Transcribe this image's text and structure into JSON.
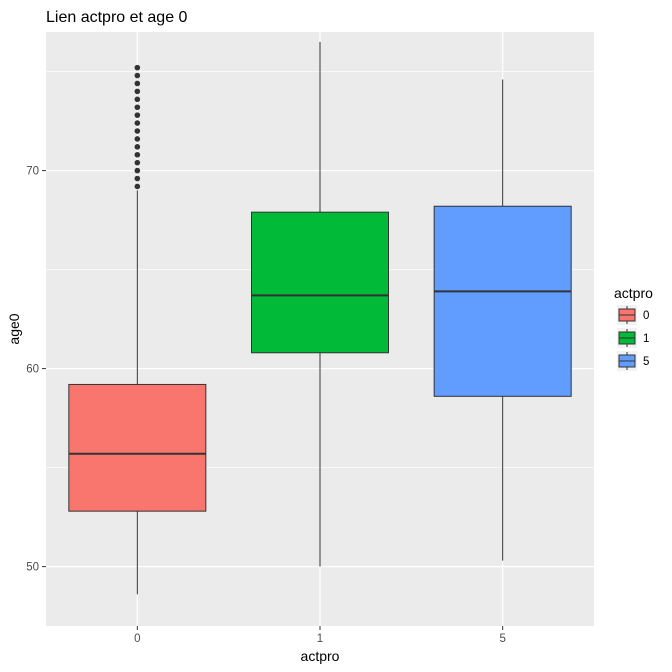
{
  "chart_data": {
    "type": "boxplot",
    "title": "Lien actpro et age 0",
    "xlabel": "actpro",
    "ylabel": "age0",
    "categories": [
      "0",
      "1",
      "5"
    ],
    "ylim": [
      47,
      77
    ],
    "y_ticks": [
      50,
      60,
      70
    ],
    "grid": true,
    "legend": {
      "title": "actpro",
      "position": "right",
      "entries": [
        "0",
        "1",
        "5"
      ]
    },
    "colors": {
      "0": "#F8766D",
      "1": "#00BA38",
      "5": "#619CFF",
      "panel_background": "#EBEBEB",
      "grid": "#FFFFFF",
      "outline": "#333333"
    },
    "series": [
      {
        "name": "0",
        "whisker_low": 48.6,
        "q1": 52.8,
        "median": 55.7,
        "q3": 59.2,
        "whisker_high": 69.0,
        "outliers": [
          69.2,
          69.6,
          70.0,
          70.4,
          70.8,
          71.2,
          71.6,
          72.0,
          72.4,
          72.8,
          73.2,
          73.6,
          74.0,
          74.4,
          74.8,
          75.2
        ]
      },
      {
        "name": "1",
        "whisker_low": 50.0,
        "q1": 60.8,
        "median": 63.7,
        "q3": 67.9,
        "whisker_high": 76.5,
        "outliers": []
      },
      {
        "name": "5",
        "whisker_low": 50.3,
        "q1": 58.6,
        "median": 63.9,
        "q3": 68.2,
        "whisker_high": 74.6,
        "outliers": []
      }
    ]
  }
}
